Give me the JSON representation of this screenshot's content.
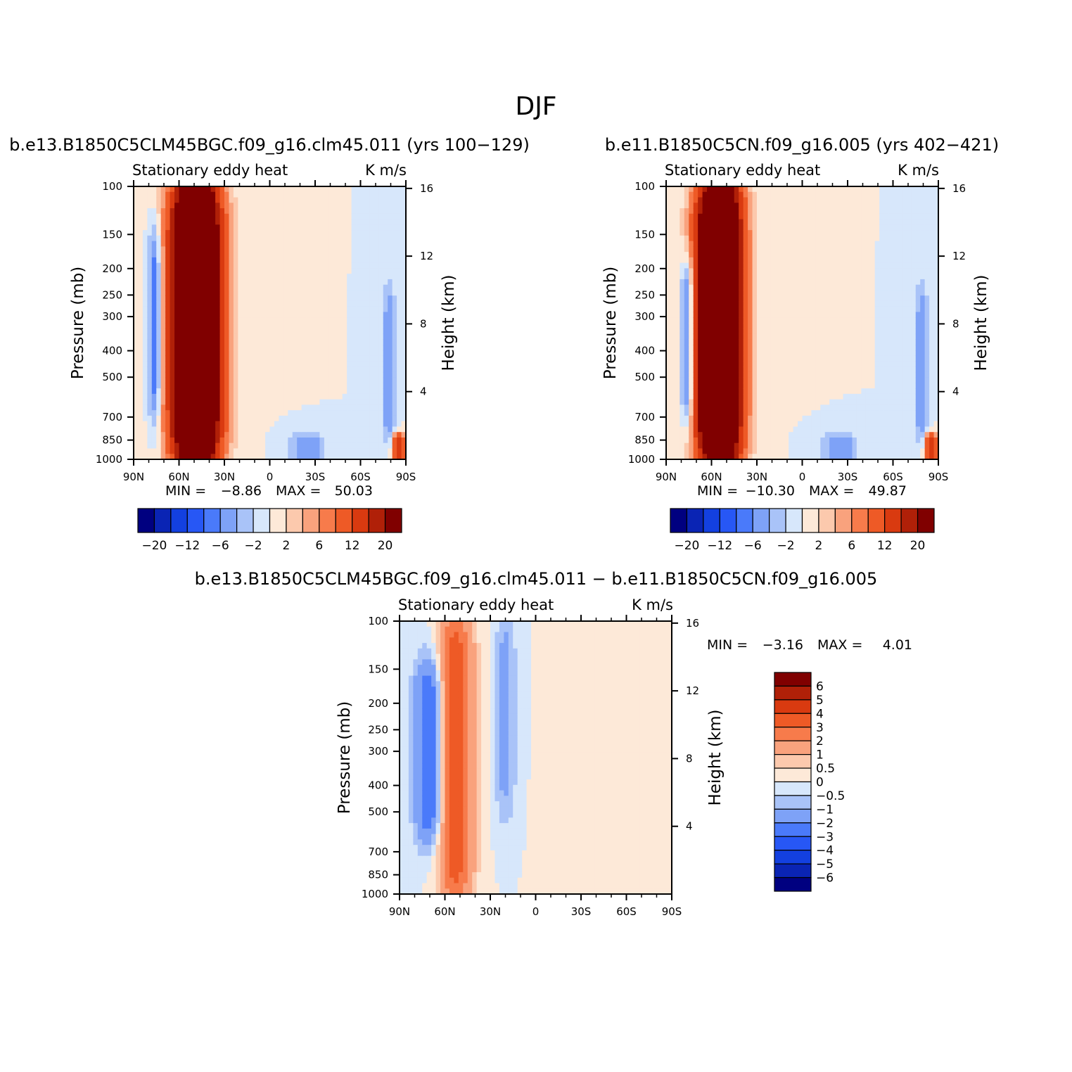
{
  "figure": {
    "season_title": "DJF"
  },
  "palette": {
    "left_panels": [
      "#000080",
      "#0a24b4",
      "#1340e0",
      "#2757f5",
      "#4a7afa",
      "#7ea2f7",
      "#a9c3f8",
      "#d7e7fb",
      "#fde9d8",
      "#fcc9ad",
      "#f9a27d",
      "#f77b4b",
      "#ee5a26",
      "#d93a10",
      "#b02008",
      "#800000"
    ],
    "diff_panel": [
      "#000080",
      "#0a24b4",
      "#1340e0",
      "#2757f5",
      "#4a7afa",
      "#7ea2f7",
      "#a9c3f8",
      "#d7e7fb",
      "#fde9d8",
      "#fcc9ad",
      "#f9a27d",
      "#f77b4b",
      "#ee5a26",
      "#d93a10",
      "#b02008",
      "#800000"
    ]
  },
  "panels": [
    {
      "case_title": "b.e13.B1850C5CLM45BGC.f09_g16.clm45.011 (yrs 100−129)",
      "left_string": "Stationary eddy heat",
      "right_string": "K m/s",
      "left_axis_label": "Pressure (mb)",
      "right_axis_label": "Height (km)",
      "min_label": "MIN =",
      "min_value": "−8.86",
      "max_label": "MAX =",
      "max_value": "50.03",
      "colorbar_labels": [
        "−20",
        "−12",
        "−6",
        "−2",
        "2",
        "6",
        "12",
        "20"
      ]
    },
    {
      "case_title": "b.e11.B1850C5CN.f09_g16.005 (yrs 402−421)",
      "left_string": "Stationary eddy heat",
      "right_string": "K m/s",
      "left_axis_label": "Pressure (mb)",
      "right_axis_label": "Height (km)",
      "min_label": "MIN =",
      "min_value": "−10.30",
      "max_label": "MAX =",
      "max_value": "49.87",
      "colorbar_labels": [
        "−20",
        "−12",
        "−6",
        "−2",
        "2",
        "6",
        "12",
        "20"
      ]
    },
    {
      "case_title": "b.e13.B1850C5CLM45BGC.f09_g16.clm45.011 − b.e11.B1850C5CN.f09_g16.005",
      "left_string": "Stationary eddy heat",
      "right_string": "K m/s",
      "left_axis_label": "Pressure (mb)",
      "right_axis_label": "Height (km)",
      "min_label": "MIN =",
      "min_value": "−3.16",
      "max_label": "MAX =",
      "max_value": "4.01",
      "colorbar_labels": [
        "6",
        "5",
        "4",
        "3",
        "2",
        "1",
        "0.5",
        "0",
        "−0.5",
        "−1",
        "−2",
        "−3",
        "−4",
        "−5",
        "−6"
      ]
    }
  ],
  "chart_data": [
    {
      "type": "heatmap",
      "title": "Stationary eddy heat",
      "units": "K m/s",
      "case": "b.e13.B1850C5CLM45BGC.f09_g16.clm45.011 (yrs 100−129)",
      "x": [
        "90N",
        "60N",
        "30N",
        "0",
        "30S",
        "60S",
        "90S"
      ],
      "y_pressure_mb": [
        1000,
        850,
        700,
        500,
        400,
        300,
        250,
        200,
        150,
        100
      ],
      "y_height_km": [
        4,
        8,
        12,
        16
      ],
      "xlim": [
        90,
        -90
      ],
      "ylim_mb": [
        1000,
        100
      ],
      "contour_levels": [
        -20,
        -16,
        -12,
        -8,
        -6,
        -4,
        -2,
        0,
        2,
        4,
        6,
        8,
        12,
        16,
        20
      ],
      "min": -8.86,
      "max": 50.03,
      "features": [
        {
          "name": "NH heat-flux maximum",
          "lat": 49,
          "lat_halfwidth": 11,
          "p_bottom": 1000,
          "p_top": 100,
          "peak": 50.03
        },
        {
          "name": "NH negative lobe",
          "lat": 76,
          "lat_halfwidth": 3,
          "p_bottom": 700,
          "p_top": 150,
          "peak": -8.86
        },
        {
          "name": "SH subtropical negative",
          "lat": -25,
          "lat_halfwidth": 8,
          "p_bottom": 1000,
          "p_top": 850,
          "peak": -6
        },
        {
          "name": "SH high-latitude negative",
          "lat": -79,
          "lat_halfwidth": 3,
          "p_bottom": 850,
          "p_top": 250,
          "peak": -6
        },
        {
          "name": "Antarctic surface positive",
          "lat": -85,
          "lat_halfwidth": 3,
          "p_bottom": 1000,
          "p_top": 850,
          "peak": 16
        }
      ]
    },
    {
      "type": "heatmap",
      "title": "Stationary eddy heat",
      "units": "K m/s",
      "case": "b.e11.B1850C5CN.f09_g16.005 (yrs 402−421)",
      "x": [
        "90N",
        "60N",
        "30N",
        "0",
        "30S",
        "60S",
        "90S"
      ],
      "y_pressure_mb": [
        1000,
        850,
        700,
        500,
        400,
        300,
        250,
        200,
        150,
        100
      ],
      "y_height_km": [
        4,
        8,
        12,
        16
      ],
      "xlim": [
        90,
        -90
      ],
      "ylim_mb": [
        1000,
        100
      ],
      "contour_levels": [
        -20,
        -16,
        -12,
        -8,
        -6,
        -4,
        -2,
        0,
        2,
        4,
        6,
        8,
        12,
        16,
        20
      ],
      "min": -10.3,
      "max": 49.87,
      "features": [
        {
          "name": "NH heat-flux maximum",
          "lat": 55,
          "lat_halfwidth": 10,
          "p_bottom": 1000,
          "p_top": 100,
          "peak": 49.87
        },
        {
          "name": "NH negative lobe",
          "lat": 76,
          "lat_halfwidth": 3,
          "p_bottom": 700,
          "p_top": 200,
          "peak": -10.3
        },
        {
          "name": "SH subtropical negative",
          "lat": -25,
          "lat_halfwidth": 8,
          "p_bottom": 1000,
          "p_top": 850,
          "peak": -6
        },
        {
          "name": "SH high-latitude negative",
          "lat": -79,
          "lat_halfwidth": 3,
          "p_bottom": 850,
          "p_top": 250,
          "peak": -6
        },
        {
          "name": "Antarctic surface positive",
          "lat": -85,
          "lat_halfwidth": 3,
          "p_bottom": 1000,
          "p_top": 850,
          "peak": 16
        }
      ]
    },
    {
      "type": "heatmap",
      "title": "Stationary eddy heat",
      "units": "K m/s",
      "case": "b.e13.B1850C5CLM45BGC.f09_g16.clm45.011 − b.e11.B1850C5CN.f09_g16.005",
      "x": [
        "90N",
        "60N",
        "30N",
        "0",
        "30S",
        "60S",
        "90S"
      ],
      "y_pressure_mb": [
        1000,
        850,
        700,
        500,
        400,
        300,
        250,
        200,
        150,
        100
      ],
      "y_height_km": [
        4,
        8,
        12,
        16
      ],
      "xlim": [
        90,
        -90
      ],
      "ylim_mb": [
        1000,
        100
      ],
      "contour_levels": [
        -6,
        -5,
        -4,
        -3,
        -2,
        -1,
        -0.5,
        0,
        0.5,
        1,
        2,
        3,
        4,
        5,
        6
      ],
      "min": -3.16,
      "max": 4.01,
      "features": [
        {
          "name": "NH negative difference",
          "lat": 70,
          "lat_halfwidth": 7,
          "p_bottom": 600,
          "p_top": 150,
          "peak": -3.16
        },
        {
          "name": "NH positive difference",
          "lat": 53,
          "lat_halfwidth": 8,
          "p_bottom": 1000,
          "p_top": 100,
          "peak": 4.01
        },
        {
          "name": "Subtropical negative band",
          "lat": 20,
          "lat_halfwidth": 5,
          "p_bottom": 500,
          "p_top": 100,
          "peak": -1.2
        },
        {
          "name": "SH positive broad",
          "lat": -50,
          "lat_halfwidth": 20,
          "p_bottom": 1000,
          "p_top": 100,
          "peak": 0.4
        }
      ]
    }
  ]
}
